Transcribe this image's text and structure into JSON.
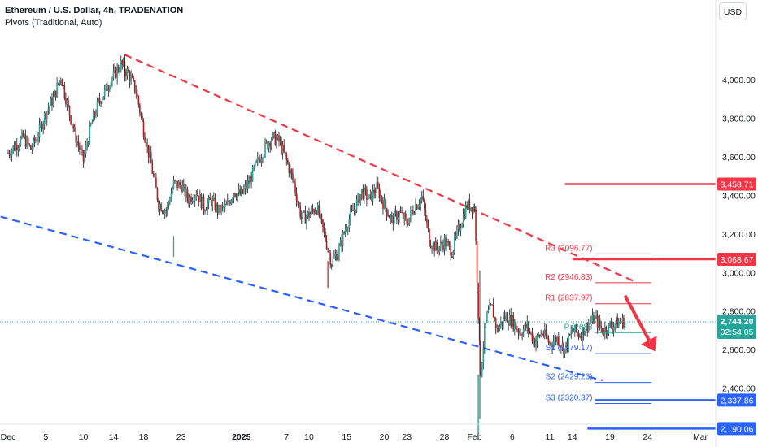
{
  "header": {
    "title": "Ethereum / U.S. Dollar, 4h, TRADENATION",
    "indicator": "Pivots (Traditional, Auto)"
  },
  "currency_button": "USD",
  "colors": {
    "up": "#26a69a",
    "down": "#b71c1c",
    "wick": "#131722",
    "resistance": "#f23645",
    "support": "#2962ff",
    "pivot": "#26a69a"
  },
  "chart_data": {
    "type": "candlestick",
    "title": "Ethereum / U.S. Dollar, 4h, TRADENATION",
    "ylim": [
      2120,
      4300
    ],
    "y_ticks": [
      2400,
      2600,
      2800,
      3000,
      3200,
      3400,
      3600,
      3800,
      4000
    ],
    "y_tick_labels": [
      "2,400.00",
      "2,600.00",
      "2,800.00",
      "3,000.00",
      "3,200.00",
      "3,400.00",
      "3,600.00",
      "3,800.00",
      "4,000.00"
    ],
    "x_ticks": [
      "Dec",
      "5",
      "10",
      "14",
      "18",
      "23",
      "2025",
      "7",
      "10",
      "15",
      "20",
      "23",
      "28",
      "Feb",
      "6",
      "11",
      "14",
      "19",
      "24",
      "Mar"
    ],
    "x_tick_days": [
      0,
      5,
      10,
      14,
      18,
      23,
      31,
      37,
      40,
      45,
      50,
      53,
      58,
      62,
      67,
      72,
      75,
      80,
      85,
      92
    ],
    "x_tick_bold": [
      "2025"
    ],
    "last_price": {
      "value": 2744.2,
      "label": "2,744.20",
      "countdown": "02:54:05"
    },
    "key_levels": [
      {
        "value": 3458.71,
        "label": "3,458.71",
        "kind": "resistance",
        "from_day": 74
      },
      {
        "value": 3068.67,
        "label": "3,068.67",
        "kind": "resistance",
        "from_day": 75
      },
      {
        "value": 2337.86,
        "label": "2,337.86",
        "kind": "support",
        "from_day": 78
      },
      {
        "value": 2190.06,
        "label": "2,190.06",
        "kind": "support",
        "from_day": 77
      }
    ],
    "pivots": [
      {
        "name": "R3",
        "value": 3096.77,
        "label": "R3 (3096.77)",
        "kind": "resistance"
      },
      {
        "name": "R2",
        "value": 2946.83,
        "label": "R2 (2946.83)",
        "kind": "resistance"
      },
      {
        "name": "R1",
        "value": 2837.97,
        "label": "R1 (2837.97)",
        "kind": "resistance"
      },
      {
        "name": "P",
        "value": 2688.0,
        "label": "P (2688",
        "kind": "pivot"
      },
      {
        "name": "S1",
        "value": 2579.17,
        "label": "S1 (2579.17)",
        "kind": "support"
      },
      {
        "name": "S2",
        "value": 2429.23,
        "label": "S2 (2429.23)",
        "kind": "support"
      },
      {
        "name": "S3",
        "value": 2320.37,
        "label": "S3 (2320.37)",
        "kind": "support"
      }
    ],
    "trendlines": [
      {
        "kind": "resistance",
        "style": "dashed",
        "points": [
          [
            15.5,
            4130
          ],
          [
            83.5,
            2950
          ]
        ]
      },
      {
        "kind": "support",
        "style": "dashed",
        "points": [
          [
            -1,
            3290
          ],
          [
            79,
            2440
          ]
        ]
      }
    ],
    "forecast_arrow": {
      "from": [
        82,
        2880
      ],
      "to": [
        86,
        2590
      ]
    },
    "price_path": [
      [
        0,
        3620
      ],
      [
        2,
        3700
      ],
      [
        3,
        3640
      ],
      [
        4,
        3720
      ],
      [
        5,
        3830
      ],
      [
        6,
        3900
      ],
      [
        7,
        4020
      ],
      [
        8,
        3850
      ],
      [
        9,
        3700
      ],
      [
        10,
        3580
      ],
      [
        11,
        3760
      ],
      [
        12,
        3880
      ],
      [
        13,
        3950
      ],
      [
        14,
        4020
      ],
      [
        15,
        4080
      ],
      [
        16,
        4030
      ],
      [
        17,
        3940
      ],
      [
        18,
        3740
      ],
      [
        19,
        3560
      ],
      [
        20,
        3360
      ],
      [
        21,
        3320
      ],
      [
        22,
        3460
      ],
      [
        23,
        3450
      ],
      [
        24,
        3380
      ],
      [
        25,
        3420
      ],
      [
        26,
        3340
      ],
      [
        27,
        3370
      ],
      [
        28,
        3320
      ],
      [
        29,
        3340
      ],
      [
        30,
        3420
      ],
      [
        31,
        3400
      ],
      [
        32,
        3470
      ],
      [
        33,
        3560
      ],
      [
        34,
        3640
      ],
      [
        35,
        3700
      ],
      [
        36,
        3680
      ],
      [
        37,
        3580
      ],
      [
        38,
        3460
      ],
      [
        39,
        3280
      ],
      [
        40,
        3300
      ],
      [
        41,
        3340
      ],
      [
        42,
        3200
      ],
      [
        43,
        3050
      ],
      [
        44,
        3120
      ],
      [
        45,
        3250
      ],
      [
        46,
        3330
      ],
      [
        47,
        3420
      ],
      [
        48,
        3380
      ],
      [
        49,
        3440
      ],
      [
        50,
        3350
      ],
      [
        51,
        3270
      ],
      [
        52,
        3310
      ],
      [
        53,
        3260
      ],
      [
        54,
        3340
      ],
      [
        55,
        3390
      ],
      [
        56,
        3170
      ],
      [
        57,
        3120
      ],
      [
        58,
        3160
      ],
      [
        59,
        3110
      ],
      [
        60,
        3240
      ],
      [
        61,
        3350
      ],
      [
        62,
        3340
      ],
      [
        62.4,
        2900
      ],
      [
        62.8,
        2470
      ],
      [
        63.2,
        2640
      ],
      [
        63.7,
        2780
      ],
      [
        64.3,
        2820
      ],
      [
        65,
        2700
      ],
      [
        66,
        2770
      ],
      [
        67,
        2750
      ],
      [
        68,
        2690
      ],
      [
        69,
        2720
      ],
      [
        70,
        2640
      ],
      [
        71,
        2690
      ],
      [
        72,
        2630
      ],
      [
        73,
        2660
      ],
      [
        74,
        2600
      ],
      [
        75,
        2700
      ],
      [
        76,
        2680
      ],
      [
        77,
        2730
      ],
      [
        78,
        2760
      ],
      [
        79,
        2700
      ],
      [
        80,
        2720
      ],
      [
        81,
        2740
      ],
      [
        82,
        2744.2
      ]
    ]
  }
}
